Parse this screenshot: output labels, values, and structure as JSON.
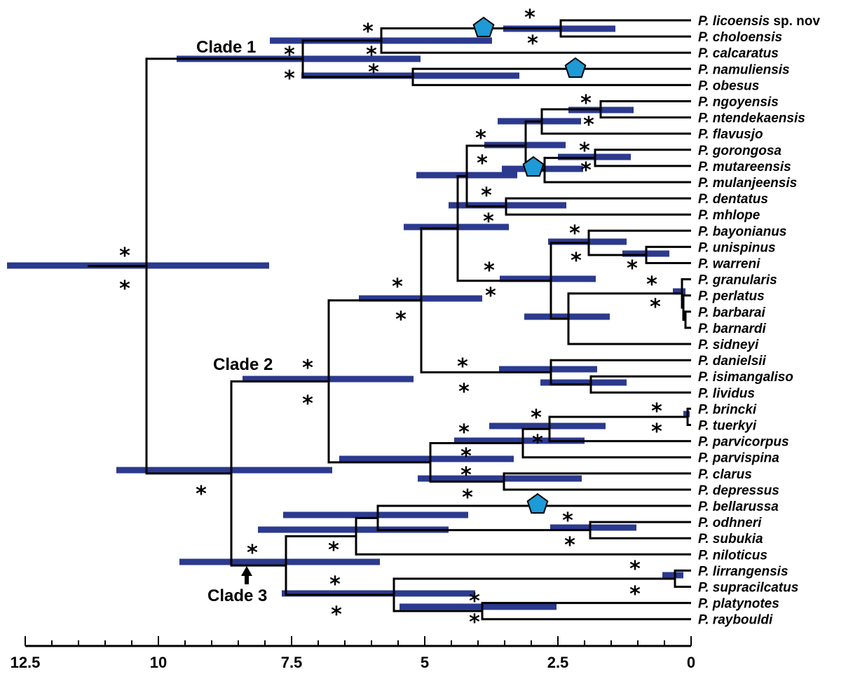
{
  "colors": {
    "branch": "#000000",
    "hpd_bar": "#2b3a8e",
    "marker": "#1e9ad6"
  },
  "support_symbol": "*",
  "support_marker_icon": "pentagon-icon",
  "taxa": [
    {
      "genus": "P.",
      "epithet": "licoensis",
      "suffix": "sp. nov"
    },
    {
      "genus": "P.",
      "epithet": "choloensis"
    },
    {
      "genus": "P.",
      "epithet": "calcaratus"
    },
    {
      "genus": "P.",
      "epithet": "namuliensis"
    },
    {
      "genus": "P.",
      "epithet": "obesus"
    },
    {
      "genus": "P.",
      "epithet": "ngoyensis"
    },
    {
      "genus": "P.",
      "epithet": "ntendekaensis"
    },
    {
      "genus": "P.",
      "epithet": "flavusjo"
    },
    {
      "genus": "P.",
      "epithet": "gorongosa"
    },
    {
      "genus": "P.",
      "epithet": "mutareensis"
    },
    {
      "genus": "P.",
      "epithet": "mulanjeensis"
    },
    {
      "genus": "P.",
      "epithet": "dentatus"
    },
    {
      "genus": "P.",
      "epithet": "mhlope"
    },
    {
      "genus": "P.",
      "epithet": "bayonianus"
    },
    {
      "genus": "P.",
      "epithet": "unispinus"
    },
    {
      "genus": "P.",
      "epithet": "warreni"
    },
    {
      "genus": "P.",
      "epithet": "granularis"
    },
    {
      "genus": "P.",
      "epithet": "perlatus"
    },
    {
      "genus": "P.",
      "epithet": "barbarai"
    },
    {
      "genus": "P.",
      "epithet": "barnardi"
    },
    {
      "genus": "P.",
      "epithet": "sidneyi"
    },
    {
      "genus": "P.",
      "epithet": "danielsii"
    },
    {
      "genus": "P.",
      "epithet": "isimangaliso"
    },
    {
      "genus": "P.",
      "epithet": "lividus"
    },
    {
      "genus": "P.",
      "epithet": "brincki"
    },
    {
      "genus": "P.",
      "epithet": "tuerkyi"
    },
    {
      "genus": "P.",
      "epithet": "parvicorpus"
    },
    {
      "genus": "P.",
      "epithet": "parvispina"
    },
    {
      "genus": "P.",
      "epithet": "clarus"
    },
    {
      "genus": "P.",
      "epithet": "depressus"
    },
    {
      "genus": "P.",
      "epithet": "bellarussa"
    },
    {
      "genus": "P.",
      "epithet": "odhneri"
    },
    {
      "genus": "P.",
      "epithet": "subukia"
    },
    {
      "genus": "P.",
      "epithet": "niloticus"
    },
    {
      "genus": "P.",
      "epithet": "lirrangensis"
    },
    {
      "genus": "P.",
      "epithet": "supracilcatus"
    },
    {
      "genus": "P.",
      "epithet": "platynotes"
    },
    {
      "genus": "P.",
      "epithet": "raybouldi"
    }
  ],
  "clades": [
    {
      "label": "Clade 1"
    },
    {
      "label": "Clade 2"
    },
    {
      "label": "Clade 3"
    }
  ],
  "axis": {
    "range": [
      12.5,
      0
    ],
    "ticks": [
      "12.5",
      "10",
      "7.5",
      "5",
      "2.5",
      "0"
    ],
    "tick_values": [
      12.5,
      10,
      7.5,
      5,
      2.5,
      0
    ]
  }
}
